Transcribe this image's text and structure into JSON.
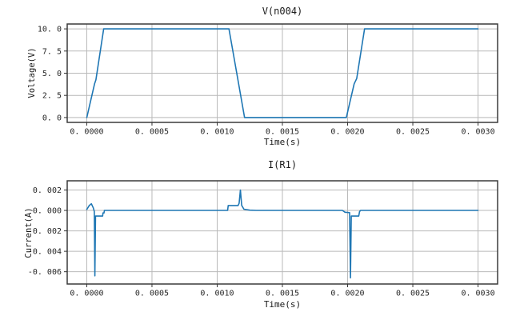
{
  "figure": {
    "background": "#ffffff",
    "line_color": "#1f77b4",
    "grid_color": "#b9b9b9",
    "spine_color": "#3a3a3a",
    "tick_color": "#333333",
    "text_color": "#262626"
  },
  "chart_data": [
    {
      "type": "line",
      "title": "V(n004)",
      "xlabel": "Time(s)",
      "ylabel": "Voltage(V)",
      "grid": true,
      "legend": "none",
      "xlim": [
        -0.00015,
        0.00315
      ],
      "ylim": [
        -0.55,
        10.55
      ],
      "xticks": [
        {
          "v": 0.0,
          "label": "0. 0000"
        },
        {
          "v": 0.0005,
          "label": "0. 0005"
        },
        {
          "v": 0.001,
          "label": "0. 0010"
        },
        {
          "v": 0.0015,
          "label": "0. 0015"
        },
        {
          "v": 0.002,
          "label": "0. 0020"
        },
        {
          "v": 0.0025,
          "label": "0. 0025"
        },
        {
          "v": 0.003,
          "label": "0. 0030"
        }
      ],
      "yticks": [
        {
          "v": 0.0,
          "label": "0. 0"
        },
        {
          "v": 2.5,
          "label": "2. 5"
        },
        {
          "v": 5.0,
          "label": "5. 0"
        },
        {
          "v": 7.5,
          "label": "7. 5"
        },
        {
          "v": 10.0,
          "label": "10. 0"
        }
      ],
      "series": [
        {
          "name": "V(n004)",
          "color": "#1f77b4",
          "points": [
            [
              0,
              0
            ],
            [
              6e-05,
              3.8
            ],
            [
              7e-05,
              4.25
            ],
            [
              0.00013,
              10
            ],
            [
              0.00109,
              10
            ],
            [
              0.00121,
              0
            ],
            [
              0.00199,
              0
            ],
            [
              0.00205,
              3.8
            ],
            [
              0.00207,
              4.4
            ],
            [
              0.00213,
              10
            ],
            [
              0.003,
              10
            ]
          ]
        }
      ]
    },
    {
      "type": "line",
      "title": "I(R1)",
      "xlabel": "Time(s)",
      "ylabel": "Current(A)",
      "grid": true,
      "legend": "none",
      "xlim": [
        -0.00015,
        0.00315
      ],
      "ylim": [
        -0.0072,
        0.0029
      ],
      "xticks": [
        {
          "v": 0.0,
          "label": "0. 0000"
        },
        {
          "v": 0.0005,
          "label": "0. 0005"
        },
        {
          "v": 0.001,
          "label": "0. 0010"
        },
        {
          "v": 0.0015,
          "label": "0. 0015"
        },
        {
          "v": 0.002,
          "label": "0. 0020"
        },
        {
          "v": 0.0025,
          "label": "0. 0025"
        },
        {
          "v": 0.003,
          "label": "0. 0030"
        }
      ],
      "yticks": [
        {
          "v": 0.002,
          "label": "0. 002"
        },
        {
          "v": 0.0,
          "label": "0. 000"
        },
        {
          "v": -0.002,
          "label": "-0. 002"
        },
        {
          "v": -0.004,
          "label": "-0. 004"
        },
        {
          "v": -0.006,
          "label": "-0. 006"
        }
      ],
      "series": [
        {
          "name": "I(R1)",
          "color": "#1f77b4",
          "points": [
            [
              0,
              0.0001
            ],
            [
              2e-05,
              0.0005
            ],
            [
              3.5e-05,
              0.00065
            ],
            [
              5e-05,
              0.00025
            ],
            [
              5.8e-05,
              -0.0001
            ],
            [
              6.2e-05,
              -0.0064
            ],
            [
              6.7e-05,
              -0.00055
            ],
            [
              0.000122,
              -0.00055
            ],
            [
              0.000124,
              -0.00025
            ],
            [
              0.000132,
              -0.00025
            ],
            [
              0.000135,
              0
            ],
            [
              0.00108,
              0
            ],
            [
              0.001085,
              0.00048
            ],
            [
              0.00116,
              0.00048
            ],
            [
              0.001168,
              0.0007
            ],
            [
              0.001178,
              0.002
            ],
            [
              0.001188,
              0.0005
            ],
            [
              0.001205,
              0.00012
            ],
            [
              0.00125,
              3e-05
            ],
            [
              0.0013,
              0
            ],
            [
              0.00196,
              0
            ],
            [
              0.00198,
              -0.00018
            ],
            [
              0.002015,
              -0.00022
            ],
            [
              0.002022,
              -0.0066
            ],
            [
              0.002028,
              -0.00055
            ],
            [
              0.002085,
              -0.00055
            ],
            [
              0.002092,
              -0.0001
            ],
            [
              0.0021,
              0
            ],
            [
              0.003,
              0
            ]
          ]
        }
      ]
    }
  ]
}
